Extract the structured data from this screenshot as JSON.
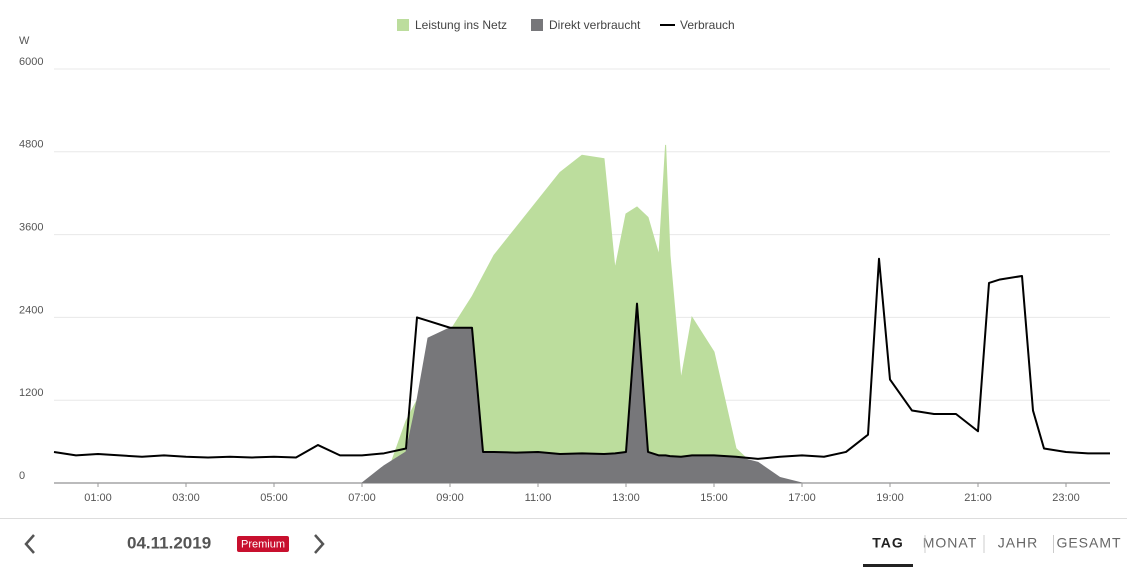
{
  "chart_data": {
    "type": "area",
    "y_unit": "W",
    "x": [
      0,
      0.5,
      1,
      1.5,
      2,
      2.5,
      3,
      3.5,
      4,
      4.5,
      5,
      5.5,
      6,
      6.5,
      7,
      7.5,
      8,
      8.25,
      8.5,
      9,
      9.5,
      9.75,
      10,
      10.5,
      11,
      11.5,
      12,
      12.5,
      12.75,
      13,
      13.25,
      13.5,
      13.75,
      13.9,
      14,
      14.25,
      14.5,
      15,
      15.5,
      16,
      16.5,
      17,
      17.5,
      18,
      18.5,
      18.75,
      19,
      19.5,
      20,
      20.5,
      21,
      21.25,
      21.5,
      22,
      22.25,
      22.5,
      23,
      23.5,
      24
    ],
    "series": [
      {
        "name": "Leistung ins Netz",
        "kind": "area",
        "color": "#bcdd9d",
        "values": [
          0,
          0,
          0,
          0,
          0,
          0,
          0,
          0,
          0,
          0,
          0,
          0,
          0,
          0,
          0,
          0,
          900,
          1200,
          1700,
          2200,
          2700,
          3000,
          3300,
          3700,
          4100,
          4500,
          4750,
          4700,
          3100,
          3900,
          4000,
          3850,
          3300,
          4900,
          3300,
          1500,
          2400,
          1900,
          500,
          200,
          0,
          0,
          0,
          0,
          0,
          0,
          0,
          0,
          0,
          0,
          0,
          0,
          0,
          0,
          0,
          0,
          0,
          0,
          0
        ]
      },
      {
        "name": "Direkt verbraucht",
        "kind": "area",
        "color": "#77777a",
        "values": [
          0,
          0,
          0,
          0,
          0,
          0,
          0,
          0,
          0,
          0,
          0,
          0,
          0,
          0,
          0,
          250,
          450,
          1200,
          2100,
          2250,
          2250,
          450,
          450,
          440,
          450,
          420,
          430,
          420,
          430,
          450,
          2600,
          450,
          400,
          400,
          390,
          380,
          400,
          400,
          380,
          300,
          80,
          0,
          0,
          0,
          0,
          0,
          0,
          0,
          0,
          0,
          0,
          0,
          0,
          0,
          0,
          0,
          0,
          0,
          0
        ]
      },
      {
        "name": "Verbrauch",
        "kind": "line",
        "color": "#000000",
        "values": [
          450,
          400,
          420,
          400,
          380,
          400,
          380,
          370,
          380,
          370,
          380,
          370,
          550,
          400,
          400,
          430,
          500,
          2400,
          2350,
          2250,
          2250,
          450,
          450,
          440,
          450,
          420,
          430,
          420,
          430,
          450,
          2600,
          450,
          400,
          400,
          390,
          380,
          400,
          400,
          380,
          350,
          380,
          400,
          380,
          450,
          700,
          3250,
          1500,
          1050,
          1000,
          1000,
          750,
          2900,
          2950,
          3000,
          1050,
          500,
          450,
          430,
          430
        ]
      }
    ],
    "xlim": [
      0,
      24
    ],
    "xticks": [
      {
        "value": 1,
        "label": "01:00"
      },
      {
        "value": 3,
        "label": "03:00"
      },
      {
        "value": 5,
        "label": "05:00"
      },
      {
        "value": 7,
        "label": "07:00"
      },
      {
        "value": 9,
        "label": "09:00"
      },
      {
        "value": 11,
        "label": "11:00"
      },
      {
        "value": 13,
        "label": "13:00"
      },
      {
        "value": 15,
        "label": "15:00"
      },
      {
        "value": 17,
        "label": "17:00"
      },
      {
        "value": 19,
        "label": "19:00"
      },
      {
        "value": 21,
        "label": "21:00"
      },
      {
        "value": 23,
        "label": "23:00"
      }
    ],
    "ylim": [
      0,
      6000
    ],
    "yticks": [
      0,
      1200,
      2400,
      3600,
      4800,
      6000
    ],
    "grid": true
  },
  "ui": {
    "date": "04.11.2019",
    "badge": "Premium",
    "tabs": [
      "TAG",
      "MONAT",
      "JAHR",
      "GESAMT"
    ]
  }
}
